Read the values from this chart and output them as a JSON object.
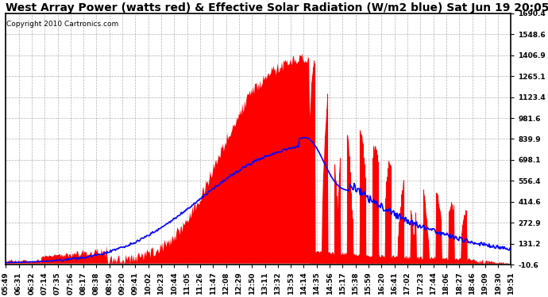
{
  "title": "West Array Power (watts red) & Effective Solar Radiation (W/m2 blue) Sat Jun 19 20:05",
  "copyright": "Copyright 2010 Cartronics.com",
  "ymin": -10.6,
  "ymax": 1690.4,
  "yticks": [
    1690.4,
    1548.6,
    1406.9,
    1265.1,
    1123.4,
    981.6,
    839.9,
    698.1,
    556.4,
    414.6,
    272.9,
    131.2,
    -10.6
  ],
  "xtick_labels": [
    "05:49",
    "06:31",
    "06:32",
    "07:14",
    "07:35",
    "07:56",
    "08:17",
    "08:38",
    "08:59",
    "09:20",
    "09:41",
    "10:02",
    "10:23",
    "10:44",
    "11:05",
    "11:26",
    "11:47",
    "12:08",
    "12:29",
    "12:50",
    "13:11",
    "13:32",
    "13:53",
    "14:14",
    "14:35",
    "14:56",
    "15:17",
    "15:38",
    "15:59",
    "16:20",
    "16:41",
    "17:02",
    "17:23",
    "17:44",
    "18:06",
    "18:27",
    "18:46",
    "19:09",
    "19:30",
    "19:51"
  ],
  "bg_color": "#ffffff",
  "grid_color": "#aaaaaa",
  "red_color": "#ff0000",
  "blue_color": "#0000ff",
  "title_fontsize": 10,
  "copyright_fontsize": 6.5,
  "tick_fontsize": 6.5
}
